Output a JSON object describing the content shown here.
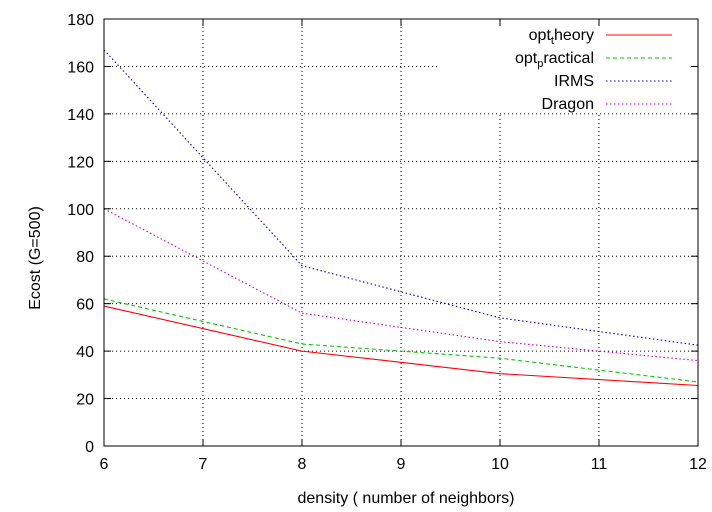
{
  "chart_data": {
    "type": "line",
    "title": "",
    "xlabel": "density ( number of neighbors)",
    "ylabel": "Ecost (G=500)",
    "xlim": [
      6,
      12
    ],
    "ylim": [
      0,
      180
    ],
    "x_ticks": [
      6,
      7,
      8,
      9,
      10,
      11,
      12
    ],
    "y_ticks": [
      0,
      20,
      40,
      60,
      80,
      100,
      120,
      140,
      160,
      180
    ],
    "grid": true,
    "legend_position": "top-right",
    "series": [
      {
        "name": "opt",
        "name_subscript": "t",
        "name_tail": "heory",
        "color": "#ff0000",
        "dash": "solid",
        "x": [
          6,
          8,
          10,
          12
        ],
        "values": [
          59,
          40,
          30.5,
          25.5
        ]
      },
      {
        "name": "opt",
        "name_subscript": "p",
        "name_tail": "ractical",
        "color": "#00cc00",
        "dash": "dashed",
        "x": [
          6,
          8,
          10,
          12
        ],
        "values": [
          62,
          43,
          37,
          27
        ]
      },
      {
        "name": "IRMS",
        "color": "#0000cc",
        "dash": "dotted",
        "x": [
          6,
          8,
          10,
          12
        ],
        "values": [
          167,
          76,
          54,
          42.5
        ]
      },
      {
        "name": "Dragon",
        "color": "#cc00cc",
        "dash": "dotted",
        "x": [
          6,
          8,
          10,
          12
        ],
        "values": [
          100,
          56,
          44,
          36
        ]
      }
    ]
  }
}
